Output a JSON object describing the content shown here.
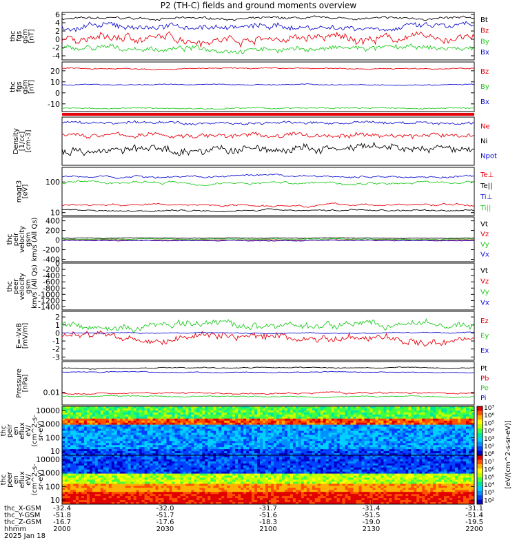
{
  "title": "P2 (TH-C) fields and ground moments overview",
  "date_label": "2025 Jan 18",
  "colors": {
    "black": "#000000",
    "red": "#e8000b",
    "green": "#22cc22",
    "blue": "#1010d0"
  },
  "chart_data": [
    {
      "id": "fgs_gsm",
      "type": "line",
      "ylabel": [
        "thc",
        "fgs",
        "gsm",
        "[nT]"
      ],
      "ylim": [
        -5,
        6.5
      ],
      "ticks": [
        6,
        4,
        2,
        0,
        -2,
        -4
      ],
      "series": [
        {
          "name": "Bt",
          "color": "black",
          "level": 5.0,
          "noise": 0.4
        },
        {
          "name": "Bz",
          "color": "red",
          "level": 0.2,
          "noise": 1.4
        },
        {
          "name": "By",
          "color": "green",
          "level": -2.3,
          "noise": 0.9
        },
        {
          "name": "Bx",
          "color": "blue",
          "level": 3.0,
          "noise": 1.0
        }
      ]
    },
    {
      "id": "fgs_gsm2",
      "type": "line",
      "ylabel": [
        "thc",
        "fgs",
        "gsm",
        "[nT]"
      ],
      "ylim": [
        -17,
        28
      ],
      "ticks": [
        20,
        10,
        0,
        -10
      ],
      "series": [
        {
          "name": "Bz",
          "color": "red",
          "level": 22,
          "noise": 0.7
        },
        {
          "name": "By",
          "color": "green",
          "level": -14,
          "noise": 0.8
        },
        {
          "name": "Bx",
          "color": "blue",
          "level": 7.5,
          "noise": 0.6
        }
      ]
    },
    {
      "id": "density",
      "type": "line",
      "ylabel": [
        "Density",
        "[1/cc]",
        "[cm-3]"
      ],
      "ylim": [
        0,
        1
      ],
      "ticks": [],
      "series": [
        {
          "name": "Ne",
          "color": "red",
          "level": 0.62,
          "noise": 0.07
        },
        {
          "name": "Ni",
          "color": "black",
          "level": 0.32,
          "noise": 0.12
        },
        {
          "name": "Npot",
          "color": "blue",
          "level": 0.88,
          "noise": 0.04
        }
      ]
    },
    {
      "id": "temperature",
      "type": "line",
      "ylabel": [
        "magt3",
        "[eV]"
      ],
      "yscale": "log",
      "ylim": [
        8,
        300
      ],
      "ticks": [
        100,
        10
      ],
      "series": [
        {
          "name": "Te⊥",
          "color": "red",
          "level": 18,
          "noise": 0.06
        },
        {
          "name": "Te||",
          "color": "black",
          "level": 12,
          "noise": 0.05
        },
        {
          "name": "Ti⊥",
          "color": "blue",
          "level": 150,
          "noise": 0.06
        },
        {
          "name": "Ti||",
          "color": "green",
          "level": 95,
          "noise": 0.08
        }
      ]
    },
    {
      "id": "peir_velocity",
      "type": "line",
      "ylabel": [
        "thc",
        "peir",
        "velocity",
        "gsm",
        "km/s (All Qs)"
      ],
      "ylim": [
        -450,
        480
      ],
      "ticks": [
        400,
        200,
        0,
        -200,
        -400
      ],
      "series": [
        {
          "name": "Vt",
          "color": "black",
          "level": 40,
          "noise": 8
        },
        {
          "name": "Vz",
          "color": "red",
          "level": 0,
          "noise": 12
        },
        {
          "name": "Vy",
          "color": "green",
          "level": 20,
          "noise": 12
        },
        {
          "name": "Vx",
          "color": "blue",
          "level": -10,
          "noise": 10
        }
      ]
    },
    {
      "id": "peer_velocity",
      "type": "line",
      "ylabel": [
        "thc",
        "peer",
        "velocity",
        "gsm",
        "km/s (All Qs)"
      ],
      "ylim": [
        -1500,
        0
      ],
      "ticks": [
        0,
        -200,
        -400,
        -600,
        -800,
        -1000,
        -1200,
        -1400
      ],
      "series": [
        {
          "name": "Vt",
          "color": "black",
          "level": 0,
          "noise": 0
        },
        {
          "name": "Vz",
          "color": "red",
          "level": 0,
          "noise": 0
        },
        {
          "name": "Vy",
          "color": "green",
          "level": 0,
          "noise": 0
        },
        {
          "name": "Vx",
          "color": "blue",
          "level": 0,
          "noise": 0
        }
      ]
    },
    {
      "id": "efield",
      "type": "line",
      "ylabel": [
        "E=-VxB",
        "[mV/m]"
      ],
      "ylim": [
        -3.4,
        2.7
      ],
      "ticks": [
        2,
        1,
        0,
        -1,
        -2,
        -3
      ],
      "series": [
        {
          "name": "Ez",
          "color": "red",
          "level": -0.6,
          "noise": 0.6
        },
        {
          "name": "Ey",
          "color": "green",
          "level": 0.9,
          "noise": 0.6
        },
        {
          "name": "Ex",
          "color": "blue",
          "level": 0.0,
          "noise": 0.08
        }
      ]
    },
    {
      "id": "pressure",
      "type": "line",
      "ylabel": [
        "Pressure",
        "[nPa]"
      ],
      "yscale": "log",
      "ylim": [
        0.002,
        0.5
      ],
      "ticks": [
        0.01
      ],
      "series": [
        {
          "name": "Pt",
          "color": "black",
          "level": 0.22,
          "noise": 0.05
        },
        {
          "name": "Pb",
          "color": "red",
          "level": 0.009,
          "noise": 0.08
        },
        {
          "name": "Pe",
          "color": "green",
          "level": 0.006,
          "noise": 0.06
        },
        {
          "name": "Pi",
          "color": "blue",
          "level": 0.13,
          "noise": 0.05
        }
      ]
    },
    {
      "id": "peir_spec",
      "type": "heatmap",
      "ylabel": [
        "thc",
        "peir",
        "en",
        "eflux",
        "eV/",
        "(cm^2-s-",
        "sr-eV)"
      ],
      "yscale": "log",
      "ylim": [
        5,
        20000
      ],
      "ticks": [
        10000,
        1000,
        100,
        10
      ]
    },
    {
      "id": "peer_spec",
      "type": "heatmap",
      "ylabel": [
        "thc",
        "peer",
        "en",
        "eflux",
        "eV/",
        "(cm^2-s-",
        "sr-eV)"
      ],
      "yscale": "log",
      "ylim": [
        5,
        20000
      ],
      "ticks": [
        10000,
        1000,
        100,
        10
      ]
    }
  ],
  "colorbar": {
    "label": "[eV/(cm^2-s-sr-eV)]",
    "ticks": [
      "10⁷",
      "10⁶",
      "10⁵",
      "10⁴",
      "10³",
      "10²",
      "10⁸",
      "10⁷",
      "10⁶",
      "10⁵",
      "10⁴",
      "10³",
      "10²"
    ]
  },
  "x_axis": {
    "row_labels": [
      "thc_X-GSM",
      "thc_Y-GSM",
      "thc_Z-GSM",
      "hhmm"
    ],
    "columns": [
      {
        "x": "-32.4",
        "y": "-51.8",
        "z": "-16.7",
        "t": "2000"
      },
      {
        "x": "-32.0",
        "y": "-51.7",
        "z": "-17.6",
        "t": "2030"
      },
      {
        "x": "-31.7",
        "y": "-51.6",
        "z": "-18.3",
        "t": "2100"
      },
      {
        "x": "-31.4",
        "y": "-51.5",
        "z": "-19.0",
        "t": "2130"
      },
      {
        "x": "-31.1",
        "y": "-51.4",
        "z": "-19.5",
        "t": "2200"
      }
    ]
  }
}
